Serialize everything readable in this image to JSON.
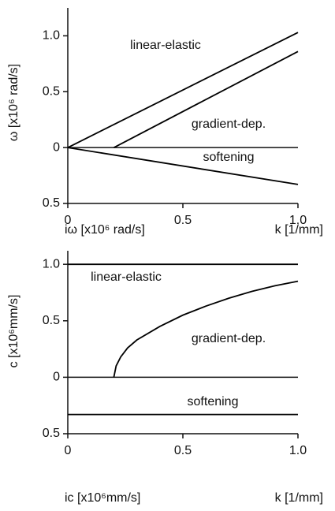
{
  "chart_data": [
    {
      "type": "line",
      "ylabel": "ω [x10⁶ rad/s]",
      "imag_label": "iω [x10⁶ rad/s]",
      "xlabel": "k [1/mm]",
      "xlim": [
        0,
        1
      ],
      "xticks": [
        0,
        0.5,
        {
          "value": 1,
          "label": "1.0"
        }
      ],
      "ylim": [
        -0.5,
        1.25
      ],
      "yticks": [
        {
          "value": 1,
          "label": "1.0"
        },
        0.5,
        0,
        {
          "value": -0.5,
          "label": "0.5"
        }
      ],
      "zero_line": true,
      "series": [
        {
          "name": "linear-elastic",
          "color": "#000000",
          "x": [
            0,
            1
          ],
          "values": [
            0,
            1.03
          ]
        },
        {
          "name": "gradient-dep.",
          "color": "#000000",
          "x": [
            0.2,
            1
          ],
          "values": [
            0,
            0.86
          ]
        },
        {
          "name": "softening",
          "color": "#000000",
          "x": [
            0,
            1
          ],
          "values": [
            0,
            -0.33
          ]
        }
      ]
    },
    {
      "type": "line",
      "ylabel": "c [x10⁶mm/s]",
      "imag_label": "ic [x10⁶mm/s]",
      "xlabel": "k [1/mm]",
      "xlim": [
        0,
        1
      ],
      "xticks": [
        0,
        0.5,
        {
          "value": 1,
          "label": "1.0"
        }
      ],
      "ylim": [
        -0.5,
        1.12
      ],
      "yticks": [
        {
          "value": 1,
          "label": "1.0"
        },
        0.5,
        0,
        {
          "value": -0.5,
          "label": "0.5"
        }
      ],
      "zero_line": true,
      "series": [
        {
          "name": "linear-elastic",
          "color": "#000000",
          "x": [
            0,
            1
          ],
          "values": [
            1,
            1
          ]
        },
        {
          "name": "gradient-dep.",
          "color": "#000000",
          "x": [
            0.2,
            0.21,
            0.23,
            0.26,
            0.3,
            0.4,
            0.5,
            0.6,
            0.7,
            0.8,
            0.9,
            1
          ],
          "values": [
            0,
            0.1,
            0.18,
            0.26,
            0.33,
            0.45,
            0.55,
            0.63,
            0.7,
            0.76,
            0.81,
            0.85
          ]
        },
        {
          "name": "softening",
          "color": "#000000",
          "x": [
            0,
            1
          ],
          "values": [
            -0.33,
            -0.33
          ]
        }
      ]
    }
  ]
}
